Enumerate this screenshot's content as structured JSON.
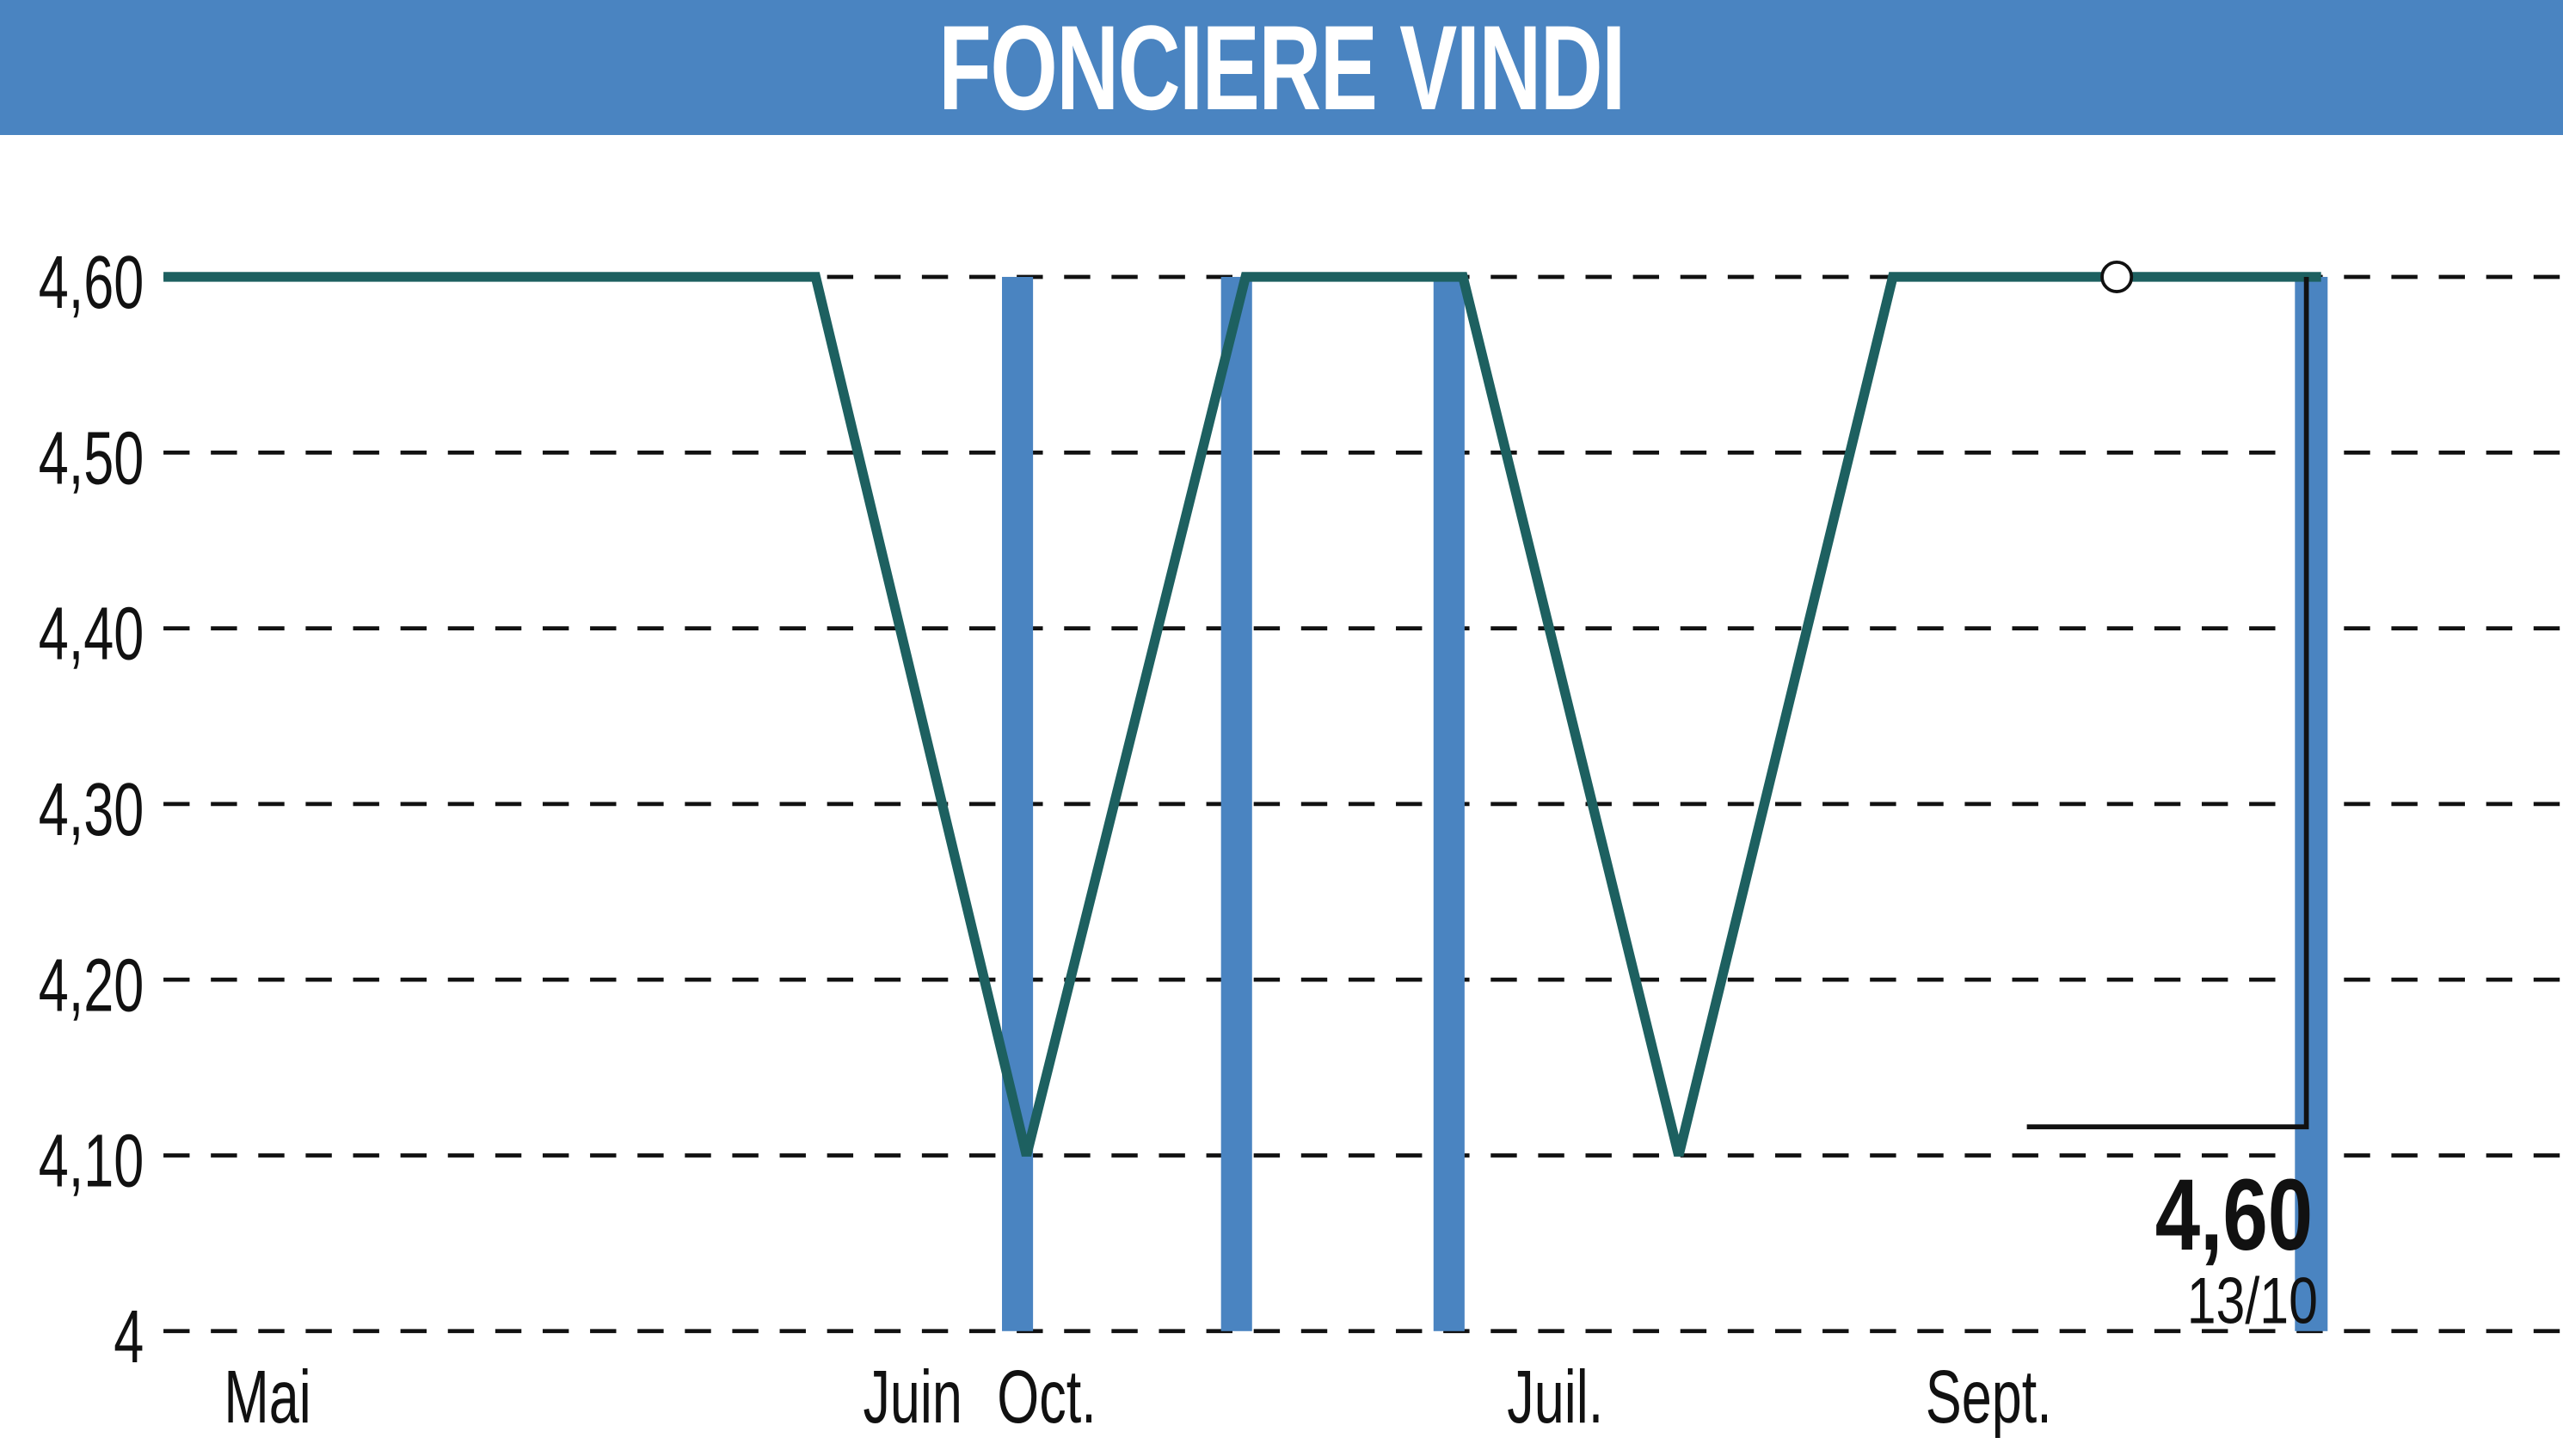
{
  "header": {
    "title": "FONCIERE VINDI"
  },
  "colors": {
    "header": "#4a84c1",
    "line": "#1d6060",
    "volume": "#4a84c1",
    "grid": "#111111"
  },
  "chart_data": {
    "type": "line",
    "title": "FONCIERE VINDI",
    "ylim": [
      4,
      4.6
    ],
    "y_ticks": [
      "4,60",
      "4,50",
      "4,40",
      "4,30",
      "4,20",
      "4,10",
      "4"
    ],
    "y_tick_values": [
      4.6,
      4.5,
      4.4,
      4.3,
      4.2,
      4.1,
      4.0
    ],
    "x_ticks": [
      "Mai",
      "Juin",
      "Oct.",
      "Juil.",
      "Sept."
    ],
    "grid": "horizontal dashed",
    "series": [
      {
        "values": [
          4.6,
          4.6,
          4.1,
          4.6,
          4.6,
          4.1,
          4.6,
          4.6
        ]
      }
    ],
    "volume_bars": [
      1,
      1,
      1,
      1
    ],
    "last_value": "4,60",
    "last_date": "13/10"
  }
}
